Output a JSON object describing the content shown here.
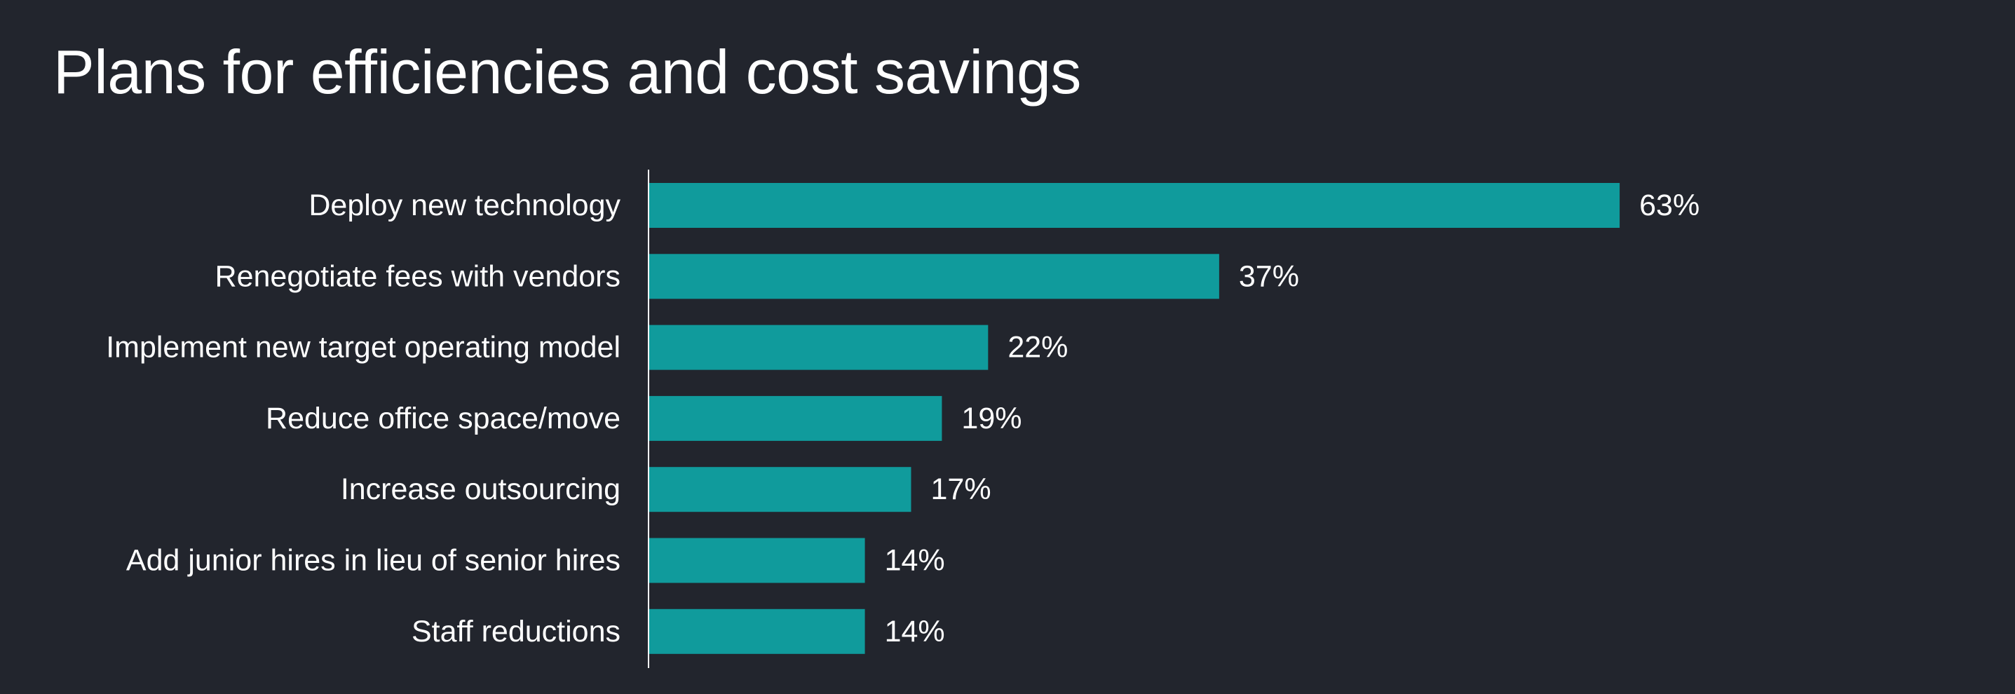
{
  "chart_data": {
    "type": "bar",
    "orientation": "horizontal",
    "title": "Plans for efficiencies and cost savings",
    "categories": [
      "Deploy new technology",
      "Renegotiate fees with vendors",
      "Implement new target operating model",
      "Reduce office space/move",
      "Increase outsourcing",
      "Add junior hires in lieu of senior hires",
      "Staff reductions"
    ],
    "values": [
      63,
      37,
      22,
      19,
      17,
      14,
      14
    ],
    "value_labels": [
      "63%",
      "37%",
      "22%",
      "19%",
      "17%",
      "14%",
      "14%"
    ],
    "unit": "%",
    "xlim": [
      0,
      100
    ],
    "grid": false,
    "legend": "none",
    "colors": {
      "background": "#22252d",
      "bar": "#109b9c",
      "text": "#ffffff",
      "axis": "#ffffff"
    }
  }
}
